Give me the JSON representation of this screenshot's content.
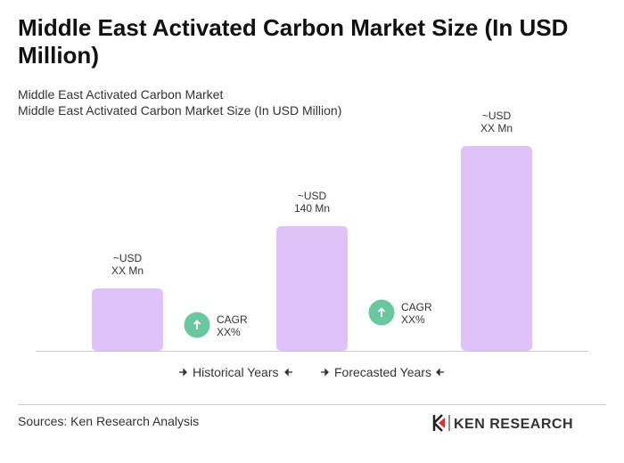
{
  "chart_data": {
    "type": "bar",
    "title": "Middle East Activated Carbon Market Size (In USD Million)",
    "subtitle": "Middle East Activated Carbon Market",
    "subtitle2": "Middle East Activated Carbon Market Size (In USD Million)",
    "categories": [
      null,
      null,
      null
    ],
    "values": [
      70,
      140,
      230
    ],
    "value_labels": [
      "~USD XX Mn",
      "~USD 140 Mn",
      "~USD XX Mn"
    ],
    "color": "#dfc3f8",
    "annotations": [
      "CAGR XX%",
      "CAGR XX%"
    ],
    "periods": [
      "Historical Years",
      "Forecasted Years"
    ],
    "source": "Sources: Ken Research Analysis",
    "brand": "KEN RESEARCH"
  }
}
